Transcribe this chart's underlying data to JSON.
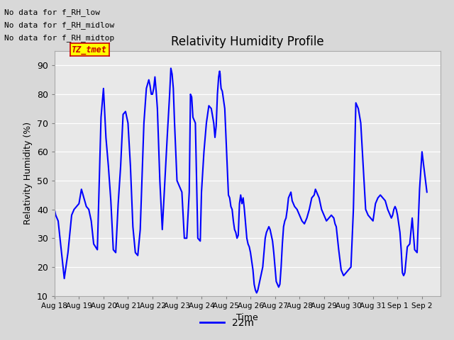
{
  "title": "Relativity Humidity Profile",
  "ylabel": "Relativity Humidity (%)",
  "xlabel": "Time",
  "legend_label": "22m",
  "line_color": "blue",
  "line_width": 1.5,
  "ylim": [
    10,
    95
  ],
  "yticks": [
    10,
    20,
    30,
    40,
    50,
    60,
    70,
    80,
    90
  ],
  "bg_color": "#d8d8d8",
  "plot_bg_color": "#e8e8e8",
  "no_data_texts": [
    "No data for f_RH_low",
    "No data for f_RH_midlow",
    "No data for f_RH_midtop"
  ],
  "tz_tmet_label": "TZ_tmet",
  "humidity_data": [
    [
      0.0,
      40
    ],
    [
      0.05,
      38
    ],
    [
      0.1,
      37
    ],
    [
      0.15,
      36
    ],
    [
      0.25,
      28
    ],
    [
      0.4,
      16
    ],
    [
      0.55,
      25
    ],
    [
      0.7,
      38
    ],
    [
      0.8,
      40
    ],
    [
      0.9,
      41
    ],
    [
      1.0,
      42
    ],
    [
      1.1,
      47
    ],
    [
      1.2,
      44
    ],
    [
      1.3,
      41
    ],
    [
      1.4,
      40
    ],
    [
      1.5,
      36
    ],
    [
      1.6,
      28
    ],
    [
      1.75,
      26
    ],
    [
      1.9,
      72
    ],
    [
      2.0,
      82
    ],
    [
      2.1,
      65
    ],
    [
      2.2,
      55
    ],
    [
      2.3,
      43
    ],
    [
      2.4,
      26
    ],
    [
      2.5,
      25
    ],
    [
      2.6,
      42
    ],
    [
      2.7,
      55
    ],
    [
      2.8,
      73
    ],
    [
      2.9,
      74
    ],
    [
      3.0,
      70
    ],
    [
      3.1,
      55
    ],
    [
      3.2,
      34
    ],
    [
      3.3,
      25
    ],
    [
      3.4,
      24
    ],
    [
      3.5,
      33
    ],
    [
      3.65,
      70
    ],
    [
      3.75,
      82
    ],
    [
      3.85,
      85
    ],
    [
      3.9,
      83
    ],
    [
      3.95,
      80
    ],
    [
      4.0,
      80
    ],
    [
      4.05,
      82
    ],
    [
      4.1,
      86
    ],
    [
      4.15,
      81
    ],
    [
      4.2,
      75
    ],
    [
      4.3,
      50
    ],
    [
      4.4,
      33
    ],
    [
      4.5,
      49
    ],
    [
      4.6,
      65
    ],
    [
      4.7,
      80
    ],
    [
      4.75,
      89
    ],
    [
      4.8,
      87
    ],
    [
      4.85,
      82
    ],
    [
      4.9,
      70
    ],
    [
      5.0,
      50
    ],
    [
      5.1,
      48
    ],
    [
      5.2,
      46
    ],
    [
      5.3,
      30
    ],
    [
      5.4,
      30
    ],
    [
      5.5,
      46
    ],
    [
      5.55,
      80
    ],
    [
      5.6,
      79
    ],
    [
      5.65,
      72
    ],
    [
      5.7,
      71
    ],
    [
      5.75,
      70
    ],
    [
      5.85,
      30
    ],
    [
      5.95,
      29
    ],
    [
      6.0,
      46
    ],
    [
      6.1,
      60
    ],
    [
      6.2,
      70
    ],
    [
      6.3,
      76
    ],
    [
      6.4,
      75
    ],
    [
      6.5,
      70
    ],
    [
      6.55,
      65
    ],
    [
      6.6,
      69
    ],
    [
      6.65,
      80
    ],
    [
      6.7,
      86
    ],
    [
      6.72,
      87
    ],
    [
      6.74,
      88
    ],
    [
      6.76,
      87
    ],
    [
      6.78,
      84
    ],
    [
      6.8,
      82
    ],
    [
      6.85,
      81
    ],
    [
      6.9,
      78
    ],
    [
      6.95,
      75
    ],
    [
      7.0,
      65
    ],
    [
      7.05,
      55
    ],
    [
      7.1,
      45
    ],
    [
      7.15,
      44
    ],
    [
      7.2,
      41
    ],
    [
      7.25,
      40
    ],
    [
      7.3,
      36
    ],
    [
      7.35,
      33
    ],
    [
      7.4,
      32
    ],
    [
      7.45,
      30
    ],
    [
      7.5,
      31
    ],
    [
      7.55,
      42
    ],
    [
      7.6,
      45
    ],
    [
      7.65,
      42
    ],
    [
      7.7,
      44
    ],
    [
      7.75,
      40
    ],
    [
      7.8,
      35
    ],
    [
      7.85,
      30
    ],
    [
      7.9,
      28
    ],
    [
      7.95,
      27
    ],
    [
      8.0,
      25
    ],
    [
      8.05,
      22
    ],
    [
      8.1,
      19
    ],
    [
      8.15,
      14
    ],
    [
      8.2,
      12
    ],
    [
      8.25,
      11
    ],
    [
      8.3,
      12
    ],
    [
      8.35,
      14
    ],
    [
      8.4,
      16
    ],
    [
      8.45,
      18
    ],
    [
      8.5,
      20
    ],
    [
      8.55,
      25
    ],
    [
      8.6,
      30
    ],
    [
      8.65,
      32
    ],
    [
      8.7,
      33
    ],
    [
      8.75,
      34
    ],
    [
      8.8,
      33
    ],
    [
      8.85,
      31
    ],
    [
      8.9,
      29
    ],
    [
      8.95,
      25
    ],
    [
      9.0,
      20
    ],
    [
      9.05,
      15
    ],
    [
      9.1,
      14
    ],
    [
      9.15,
      13
    ],
    [
      9.2,
      14
    ],
    [
      9.25,
      20
    ],
    [
      9.3,
      28
    ],
    [
      9.35,
      34
    ],
    [
      9.4,
      36
    ],
    [
      9.45,
      37
    ],
    [
      9.5,
      40
    ],
    [
      9.55,
      44
    ],
    [
      9.6,
      45
    ],
    [
      9.65,
      46
    ],
    [
      9.7,
      43
    ],
    [
      9.8,
      41
    ],
    [
      9.9,
      40
    ],
    [
      10.0,
      38
    ],
    [
      10.1,
      36
    ],
    [
      10.2,
      35
    ],
    [
      10.3,
      37
    ],
    [
      10.4,
      40
    ],
    [
      10.5,
      44
    ],
    [
      10.6,
      45
    ],
    [
      10.65,
      47
    ],
    [
      10.7,
      46
    ],
    [
      10.75,
      45
    ],
    [
      10.8,
      44
    ],
    [
      10.9,
      40
    ],
    [
      11.0,
      38
    ],
    [
      11.1,
      36
    ],
    [
      11.2,
      37
    ],
    [
      11.3,
      38
    ],
    [
      11.4,
      37
    ],
    [
      11.45,
      35
    ],
    [
      11.5,
      34
    ],
    [
      11.6,
      26
    ],
    [
      11.7,
      19
    ],
    [
      11.8,
      17
    ],
    [
      11.9,
      18
    ],
    [
      12.0,
      19
    ],
    [
      12.1,
      20
    ],
    [
      12.2,
      40
    ],
    [
      12.3,
      77
    ],
    [
      12.4,
      75
    ],
    [
      12.5,
      70
    ],
    [
      12.6,
      55
    ],
    [
      12.7,
      40
    ],
    [
      12.8,
      38
    ],
    [
      12.9,
      37
    ],
    [
      13.0,
      36
    ],
    [
      13.1,
      42
    ],
    [
      13.2,
      44
    ],
    [
      13.3,
      45
    ],
    [
      13.4,
      44
    ],
    [
      13.5,
      43
    ],
    [
      13.6,
      40
    ],
    [
      13.65,
      39
    ],
    [
      13.7,
      38
    ],
    [
      13.75,
      37
    ],
    [
      13.8,
      38
    ],
    [
      13.85,
      40
    ],
    [
      13.9,
      41
    ],
    [
      13.95,
      40
    ],
    [
      14.0,
      38
    ],
    [
      14.05,
      35
    ],
    [
      14.1,
      32
    ],
    [
      14.15,
      26
    ],
    [
      14.2,
      18
    ],
    [
      14.25,
      17
    ],
    [
      14.3,
      18
    ],
    [
      14.4,
      27
    ],
    [
      14.5,
      28
    ],
    [
      14.6,
      37
    ],
    [
      14.7,
      26
    ],
    [
      14.8,
      25
    ],
    [
      14.9,
      47
    ],
    [
      15.0,
      60
    ],
    [
      15.2,
      46
    ]
  ]
}
